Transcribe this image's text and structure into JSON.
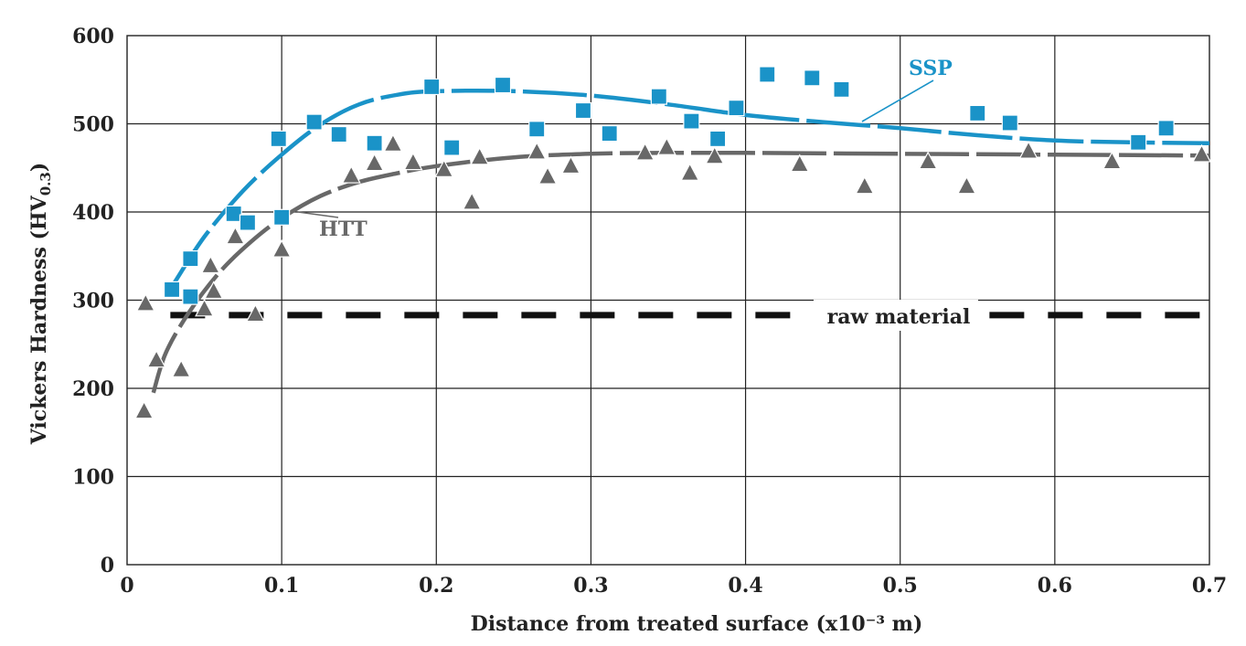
{
  "chart_data": {
    "type": "scatter",
    "title": "",
    "xlabel": "Distance from treated surface (x10⁻³ m)",
    "ylabel": "Vickers Hardness (HV",
    "ylabel_subscript": "0.3",
    "ylabel_close": ")",
    "xlim": [
      0,
      0.7
    ],
    "ylim": [
      0,
      600
    ],
    "grid": true,
    "x_ticks": [
      "0",
      "0.1",
      "0.2",
      "0.3",
      "0.4",
      "0.5",
      "0.6",
      "0.7"
    ],
    "y_ticks": [
      "0",
      "100",
      "200",
      "300",
      "400",
      "500",
      "600"
    ],
    "colors": {
      "ssp": "#1a93c8",
      "htt": "#686868",
      "raw": "#111111",
      "grid": "#222222"
    },
    "series": [
      {
        "name": "SSP",
        "marker": "square",
        "points": [
          [
            0.029,
            312
          ],
          [
            0.041,
            347
          ],
          [
            0.041,
            304
          ],
          [
            0.069,
            398
          ],
          [
            0.078,
            388
          ],
          [
            0.098,
            483
          ],
          [
            0.1,
            394
          ],
          [
            0.121,
            502
          ],
          [
            0.137,
            488
          ],
          [
            0.16,
            478
          ],
          [
            0.197,
            542
          ],
          [
            0.21,
            473
          ],
          [
            0.243,
            544
          ],
          [
            0.265,
            494
          ],
          [
            0.295,
            515
          ],
          [
            0.312,
            489
          ],
          [
            0.344,
            531
          ],
          [
            0.365,
            503
          ],
          [
            0.382,
            483
          ],
          [
            0.394,
            518
          ],
          [
            0.414,
            556
          ],
          [
            0.443,
            552
          ],
          [
            0.462,
            539
          ],
          [
            0.55,
            512
          ],
          [
            0.571,
            501
          ],
          [
            0.654,
            479
          ],
          [
            0.672,
            495
          ]
        ],
        "fit": [
          [
            0.03,
            318
          ],
          [
            0.05,
            372
          ],
          [
            0.075,
            424
          ],
          [
            0.1,
            465
          ],
          [
            0.125,
            499
          ],
          [
            0.15,
            522
          ],
          [
            0.175,
            533
          ],
          [
            0.2,
            537
          ],
          [
            0.25,
            537
          ],
          [
            0.3,
            532
          ],
          [
            0.35,
            522
          ],
          [
            0.4,
            510
          ],
          [
            0.45,
            502
          ],
          [
            0.5,
            495
          ],
          [
            0.55,
            487
          ],
          [
            0.6,
            481
          ],
          [
            0.65,
            479
          ],
          [
            0.7,
            478
          ]
        ]
      },
      {
        "name": "HTT",
        "marker": "triangle",
        "points": [
          [
            0.011,
            174
          ],
          [
            0.012,
            296
          ],
          [
            0.019,
            232
          ],
          [
            0.035,
            221
          ],
          [
            0.05,
            290
          ],
          [
            0.054,
            339
          ],
          [
            0.056,
            310
          ],
          [
            0.07,
            372
          ],
          [
            0.083,
            284
          ],
          [
            0.1,
            357
          ],
          [
            0.145,
            441
          ],
          [
            0.16,
            455
          ],
          [
            0.172,
            477
          ],
          [
            0.185,
            456
          ],
          [
            0.205,
            448
          ],
          [
            0.223,
            411
          ],
          [
            0.228,
            462
          ],
          [
            0.265,
            468
          ],
          [
            0.272,
            440
          ],
          [
            0.287,
            452
          ],
          [
            0.335,
            467
          ],
          [
            0.349,
            473
          ],
          [
            0.364,
            444
          ],
          [
            0.38,
            463
          ],
          [
            0.435,
            454
          ],
          [
            0.477,
            429
          ],
          [
            0.518,
            457
          ],
          [
            0.543,
            429
          ],
          [
            0.583,
            469
          ],
          [
            0.637,
            457
          ],
          [
            0.695,
            465
          ]
        ],
        "fit": [
          [
            0.017,
            195
          ],
          [
            0.025,
            240
          ],
          [
            0.04,
            286
          ],
          [
            0.06,
            332
          ],
          [
            0.08,
            366
          ],
          [
            0.1,
            393
          ],
          [
            0.125,
            418
          ],
          [
            0.15,
            434
          ],
          [
            0.175,
            444
          ],
          [
            0.2,
            452
          ],
          [
            0.25,
            462
          ],
          [
            0.3,
            466
          ],
          [
            0.35,
            467
          ],
          [
            0.4,
            467
          ],
          [
            0.5,
            466
          ],
          [
            0.6,
            465
          ],
          [
            0.7,
            464
          ]
        ]
      }
    ],
    "reference_line": {
      "label": "raw material",
      "y": 283
    },
    "annotations": [
      {
        "text": "SSP",
        "series": "SSP"
      },
      {
        "text": "HTT",
        "series": "HTT"
      }
    ]
  }
}
